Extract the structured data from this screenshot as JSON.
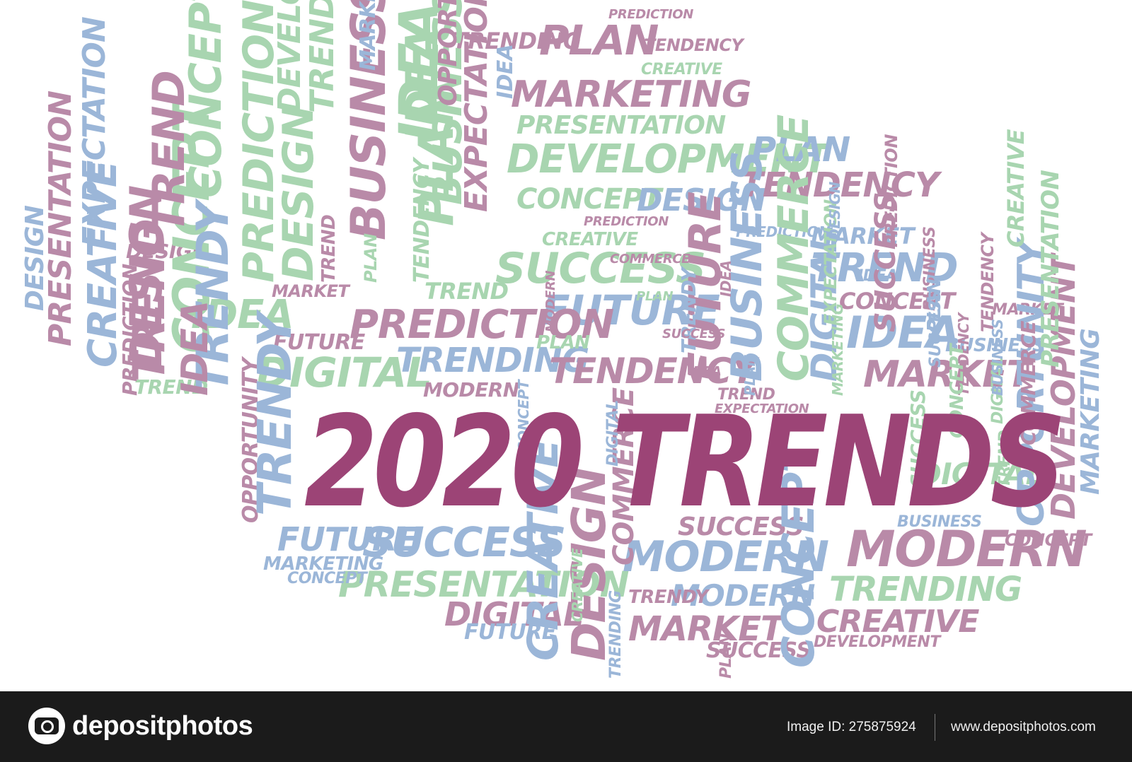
{
  "colors": {
    "mauve": "#b98aa8",
    "plum": "#9c4476",
    "green": "#a8d5b0",
    "blue": "#9bb6d8",
    "footer_bg": "#1b1b1b"
  },
  "headline": "2020 TRENDS",
  "words": [
    {
      "text": "PLAN",
      "color": "mauve"
    },
    {
      "text": "MARKETING",
      "color": "mauve"
    },
    {
      "text": "TRENDING",
      "color": "mauve"
    },
    {
      "text": "PREDICTION",
      "color": "mauve"
    },
    {
      "text": "TENDENCY",
      "color": "mauve"
    },
    {
      "text": "CREATIVE",
      "color": "green"
    },
    {
      "text": "PRESENTATION",
      "color": "green"
    },
    {
      "text": "DEVELOPMENT",
      "color": "green"
    },
    {
      "text": "CONCEPT",
      "color": "green"
    },
    {
      "text": "DESIGN",
      "color": "blue"
    },
    {
      "text": "PLAN",
      "color": "blue"
    },
    {
      "text": "TENDENCY",
      "color": "mauve"
    },
    {
      "text": "PREDICTION",
      "color": "blue"
    },
    {
      "text": "MARKET",
      "color": "blue"
    },
    {
      "text": "CREATIVE",
      "color": "green"
    },
    {
      "text": "SUCCESS",
      "color": "green"
    },
    {
      "text": "TREND",
      "color": "blue"
    },
    {
      "text": "CONCEPT",
      "color": "mauve"
    },
    {
      "text": "FUTURE",
      "color": "blue"
    },
    {
      "text": "IDEA",
      "color": "blue"
    },
    {
      "text": "PREDICTION",
      "color": "mauve"
    },
    {
      "text": "TREND",
      "color": "green"
    },
    {
      "text": "MARKET",
      "color": "mauve"
    },
    {
      "text": "FUTURE",
      "color": "mauve"
    },
    {
      "text": "DIGITAL",
      "color": "green"
    },
    {
      "text": "TRENDING",
      "color": "blue"
    },
    {
      "text": "TENDENCY",
      "color": "mauve"
    },
    {
      "text": "PLAN",
      "color": "green"
    },
    {
      "text": "BUSINESS",
      "color": "blue"
    },
    {
      "text": "MARKET",
      "color": "mauve"
    },
    {
      "text": "MODERN",
      "color": "mauve"
    },
    {
      "text": "TREND",
      "color": "green"
    },
    {
      "text": "DESIGN",
      "color": "mauve"
    },
    {
      "text": "IDEA",
      "color": "green"
    },
    {
      "text": "FUTURE",
      "color": "blue"
    },
    {
      "text": "SUCCESS",
      "color": "blue"
    },
    {
      "text": "PRESENTATION",
      "color": "green"
    },
    {
      "text": "MARKETING",
      "color": "blue"
    },
    {
      "text": "CONCEPT",
      "color": "blue"
    },
    {
      "text": "DIGITAL",
      "color": "mauve"
    },
    {
      "text": "FUTURE",
      "color": "blue"
    },
    {
      "text": "MODERN",
      "color": "blue"
    },
    {
      "text": "SUCCESS",
      "color": "mauve"
    },
    {
      "text": "MODERN",
      "color": "blue"
    },
    {
      "text": "MARKET",
      "color": "mauve"
    },
    {
      "text": "SUCCESS",
      "color": "mauve"
    },
    {
      "text": "MODERN",
      "color": "mauve"
    },
    {
      "text": "TRENDING",
      "color": "green"
    },
    {
      "text": "CONCEPT",
      "color": "mauve"
    },
    {
      "text": "CREATIVE",
      "color": "mauve"
    },
    {
      "text": "DIGITAL",
      "color": "green"
    },
    {
      "text": "BUSINESS",
      "color": "blue"
    },
    {
      "text": "IDEA",
      "color": "blue"
    },
    {
      "text": "MARKET",
      "color": "mauve"
    },
    {
      "text": "DEVELOPMENT",
      "color": "mauve"
    },
    {
      "text": "TREND",
      "color": "mauve"
    },
    {
      "text": "TRENDY",
      "color": "mauve"
    },
    {
      "text": "CREATIVE",
      "color": "blue"
    },
    {
      "text": "DESIGN",
      "color": "mauve"
    },
    {
      "text": "CONCEPT",
      "color": "green"
    },
    {
      "text": "TRENDY",
      "color": "blue"
    },
    {
      "text": "OPPORTUNITY",
      "color": "mauve"
    },
    {
      "text": "COMMERCE",
      "color": "mauve"
    },
    {
      "text": "FUTURE",
      "color": "mauve"
    },
    {
      "text": "BUSINESS",
      "color": "blue"
    },
    {
      "text": "COMMERCE",
      "color": "green"
    },
    {
      "text": "DIGITAL",
      "color": "blue"
    },
    {
      "text": "OPPORTUNITY",
      "color": "blue"
    },
    {
      "text": "DEVELOPMENT",
      "color": "mauve"
    },
    {
      "text": "MARKETING",
      "color": "blue"
    },
    {
      "text": "TREND",
      "color": "mauve"
    },
    {
      "text": "TREND",
      "color": "mauve"
    },
    {
      "text": "IDEA",
      "color": "mauve"
    },
    {
      "text": "CREATIVE",
      "color": "blue"
    },
    {
      "text": "CONCEPT",
      "color": "blue"
    },
    {
      "text": "PREDICTION",
      "color": "green"
    },
    {
      "text": "DESIGN",
      "color": "green"
    },
    {
      "text": "TRENDY",
      "color": "blue"
    },
    {
      "text": "BUSINESS",
      "color": "mauve"
    },
    {
      "text": "IDEA",
      "color": "green"
    },
    {
      "text": "PLAN",
      "color": "green"
    },
    {
      "text": "EXPECTATION",
      "color": "mauve"
    },
    {
      "text": "DESIGN",
      "color": "blue"
    },
    {
      "text": "PRESENTATION",
      "color": "mauve"
    },
    {
      "text": "EXPECTATION",
      "color": "blue"
    },
    {
      "text": "CONCEPT",
      "color": "green"
    },
    {
      "text": "IDEA",
      "color": "green"
    },
    {
      "text": "PREDICTION",
      "color": "mauve"
    },
    {
      "text": "DESIGN",
      "color": "mauve"
    },
    {
      "text": "TREND",
      "color": "mauve"
    },
    {
      "text": "DEVELOPMENT",
      "color": "green"
    },
    {
      "text": "BUSINESS",
      "color": "green"
    },
    {
      "text": "TREND",
      "color": "green"
    },
    {
      "text": "MARKETING",
      "color": "blue"
    },
    {
      "text": "IDEA",
      "color": "blue"
    },
    {
      "text": "PLAN",
      "color": "blue"
    },
    {
      "text": "OPPORTUNITY",
      "color": "mauve"
    },
    {
      "text": "TENDENCY",
      "color": "green"
    },
    {
      "text": "PLAN",
      "color": "green"
    },
    {
      "text": "IDEA",
      "color": "mauve"
    },
    {
      "text": "PLAN",
      "color": "mauve"
    },
    {
      "text": "SUCCESS",
      "color": "mauve"
    },
    {
      "text": "BUSINESS",
      "color": "mauve"
    },
    {
      "text": "CREATIVE",
      "color": "green"
    },
    {
      "text": "DIGITAL",
      "color": "green"
    },
    {
      "text": "TENDENCY",
      "color": "mauve"
    },
    {
      "text": "PREDICTION",
      "color": "mauve"
    },
    {
      "text": "TRENDING",
      "color": "blue"
    },
    {
      "text": "COMMERCE",
      "color": "mauve"
    },
    {
      "text": "SUCCESS",
      "color": "green"
    },
    {
      "text": "PLAN",
      "color": "blue"
    },
    {
      "text": "CONCEPT",
      "color": "green"
    },
    {
      "text": "CREATIVE",
      "color": "green"
    },
    {
      "text": "MODERN",
      "color": "mauve"
    },
    {
      "text": "PRESENTATION",
      "color": "green"
    },
    {
      "text": "CONCEPT",
      "color": "blue"
    },
    {
      "text": "TENDENCY",
      "color": "mauve"
    },
    {
      "text": "SUCCESS",
      "color": "blue"
    },
    {
      "text": "TRENDY",
      "color": "blue"
    },
    {
      "text": "MARKETING",
      "color": "green"
    },
    {
      "text": "TREND",
      "color": "green"
    },
    {
      "text": "DIGITAL",
      "color": "blue"
    },
    {
      "text": "EXPECTATION",
      "color": "green"
    },
    {
      "text": "DESIGN",
      "color": "blue"
    },
    {
      "text": "BUSINESS",
      "color": "blue"
    },
    {
      "text": "PREDICTION",
      "color": "mauve"
    },
    {
      "text": "COMMERCE",
      "color": "mauve"
    },
    {
      "text": "PLAN",
      "color": "green"
    },
    {
      "text": "SUCCESS",
      "color": "mauve"
    },
    {
      "text": "IDEA",
      "color": "mauve"
    },
    {
      "text": "EXPECTATION",
      "color": "mauve"
    }
  ],
  "footer": {
    "brand": "depositphotos",
    "image_id": "Image ID: 275875924",
    "url": "www.depositphotos.com"
  }
}
